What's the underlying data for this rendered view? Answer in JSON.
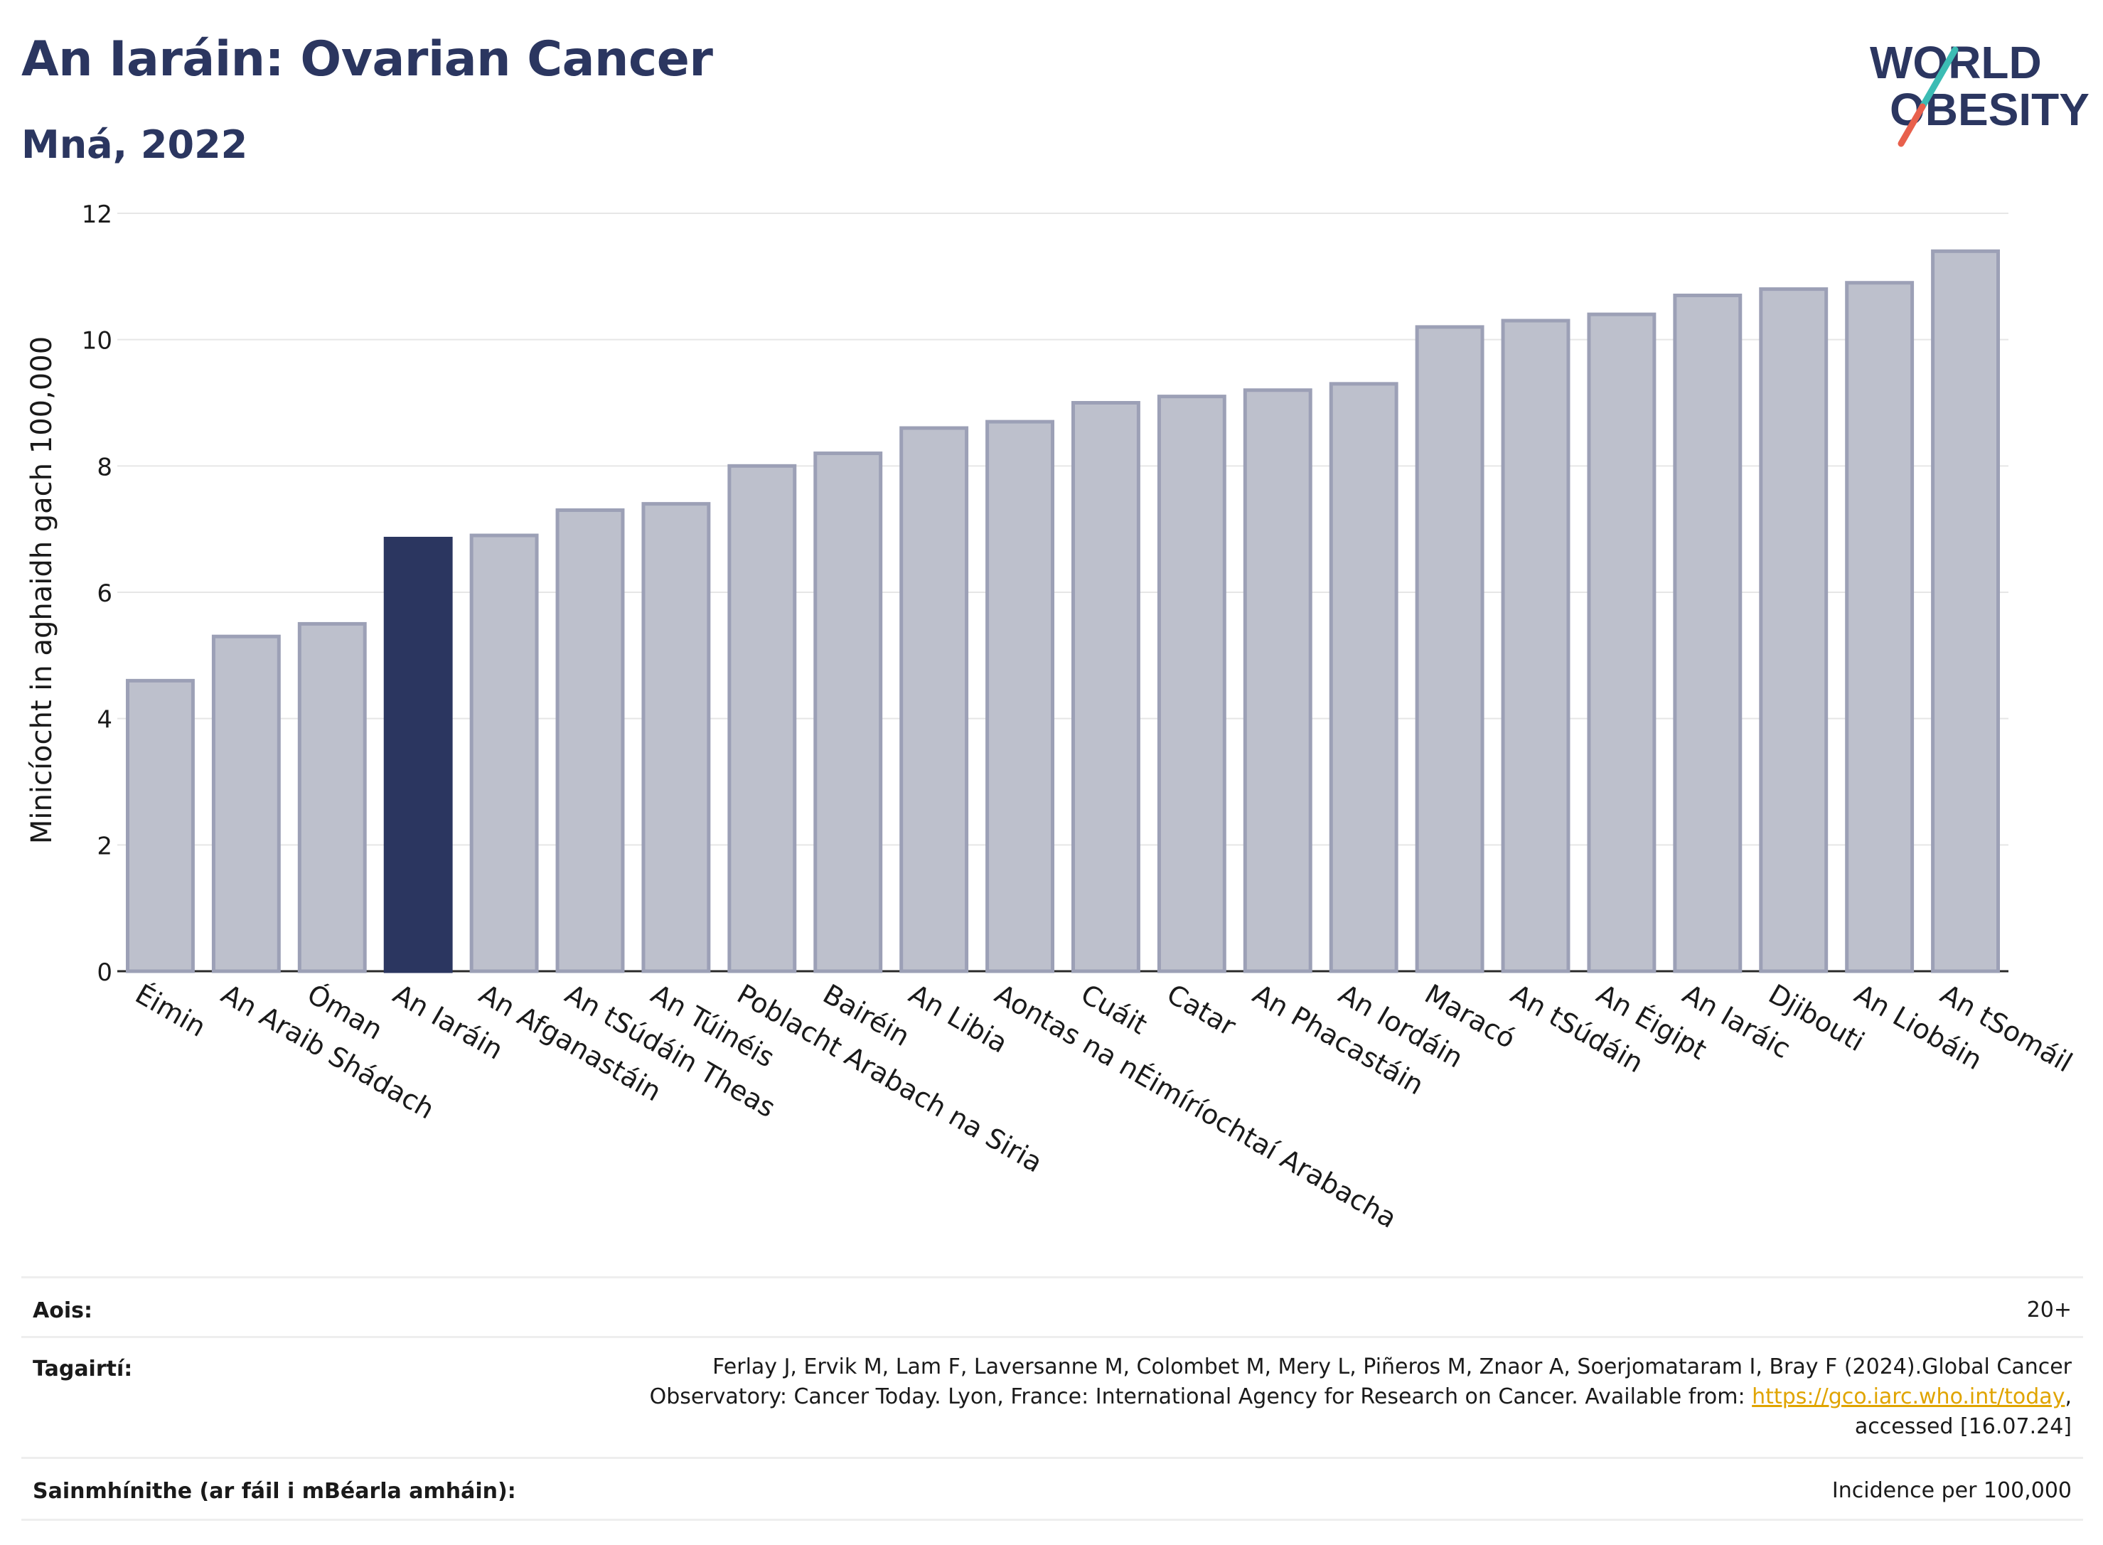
{
  "header": {
    "title": "An Iaráin: Ovarian Cancer",
    "subtitle": "Mná, 2022",
    "logo": {
      "line1": "WORLD",
      "line2": "OBESITY",
      "colors": {
        "text": "#2b3660",
        "slash_teal": "#3cbcb4",
        "slash_red": "#e8604c"
      }
    }
  },
  "chart_data": {
    "type": "bar",
    "ylabel": "Minicíocht in aghaidh gach 100,000",
    "ylim": [
      0,
      12
    ],
    "yticks": [
      0,
      2,
      4,
      6,
      8,
      10,
      12
    ],
    "grid": true,
    "highlight": "An Iaráin",
    "colors": {
      "bar": "#bdc0cc",
      "bar_border": "#9ca0b6",
      "highlight": "#2b3660"
    },
    "categories": [
      "Éimin",
      "An Araib Shádach",
      "Óman",
      "An Iaráin",
      "An Afganastáin",
      "An tSúdáin Theas",
      "An Túinéis",
      "Poblacht Arabach na Siria",
      "Bairéin",
      "An Libia",
      "Aontas na nÉimíríochtaí Arabacha",
      "Cuáit",
      "Catar",
      "An Phacastáin",
      "An Iordáin",
      "Maracó",
      "An tSúdáin",
      "An Éigipt",
      "An Iaráic",
      "Djibouti",
      "An Liobáin",
      "An tSomáil"
    ],
    "values": [
      4.6,
      5.3,
      5.5,
      6.85,
      6.9,
      7.3,
      7.4,
      8.0,
      8.2,
      8.6,
      8.7,
      9.0,
      9.1,
      9.2,
      9.3,
      10.2,
      10.3,
      10.4,
      10.7,
      10.8,
      10.9,
      11.4
    ]
  },
  "info": {
    "age_label": "Aois:",
    "age_value": "20+",
    "refs_label": "Tagairtí:",
    "refs_line1": "Ferlay J, Ervik M, Lam F, Laversanne M, Colombet M, Mery L, Piñeros M, Znaor A, Soerjomataram I, Bray F (2024).Global Cancer",
    "refs_line2_pre": "Observatory: Cancer Today. Lyon, France: International Agency for Research on Cancer. Available from: ",
    "refs_link": "https://gco.iarc.who.int/today",
    "refs_line2_post": ",",
    "refs_line3": "accessed [16.07.24]",
    "defs_label": "Sainmhínithe (ar fáil i mBéarla amháin):",
    "defs_value": "Incidence per 100,000"
  }
}
